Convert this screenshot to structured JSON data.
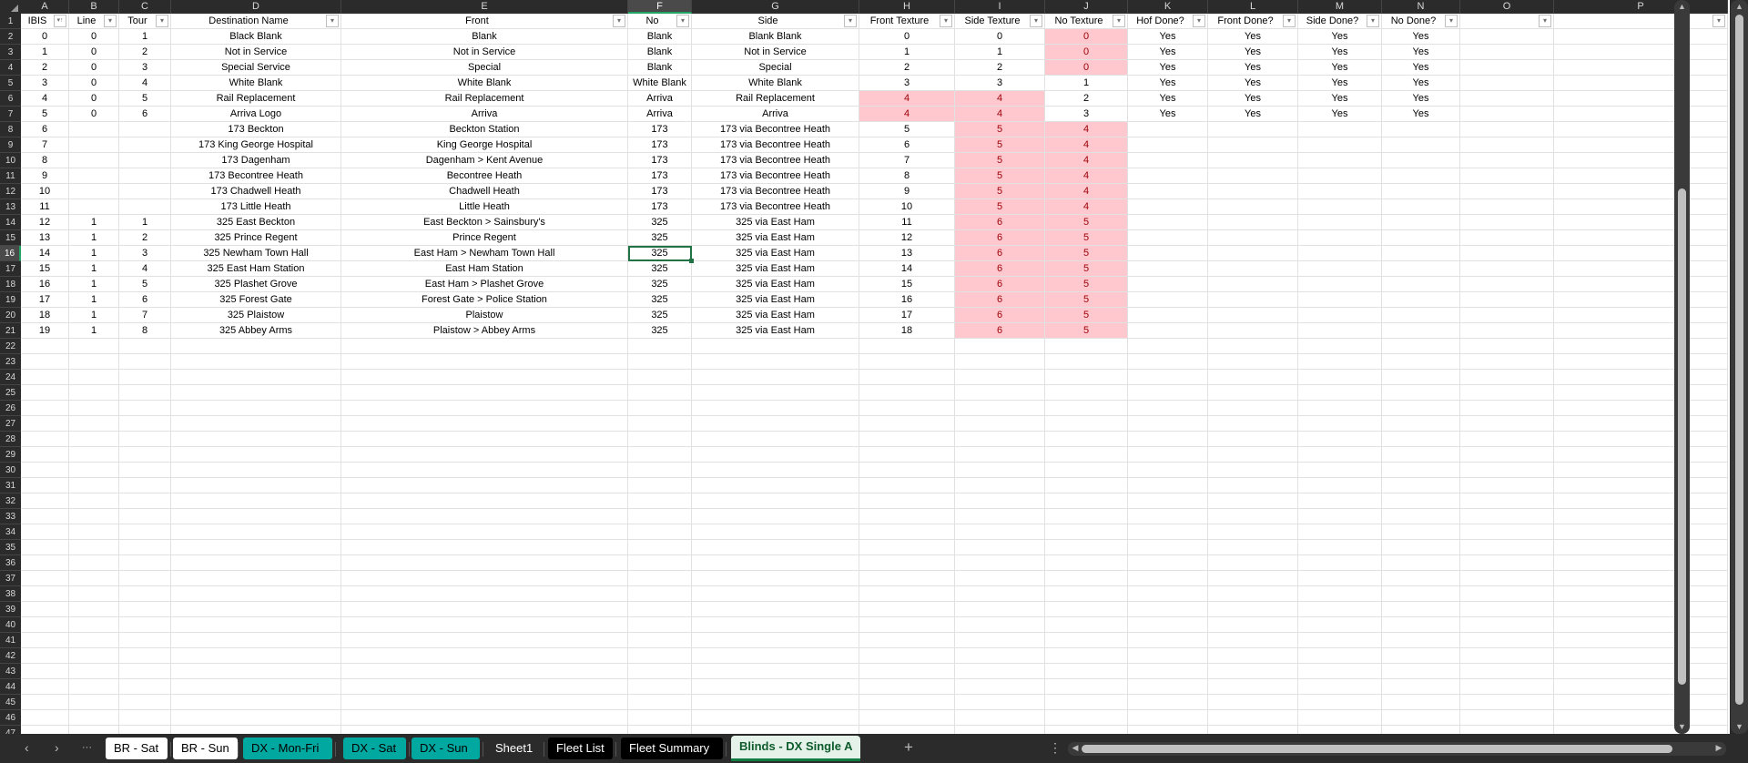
{
  "sheet": {
    "columns": [
      "A",
      "B",
      "C",
      "D",
      "E",
      "F",
      "G",
      "H",
      "I",
      "J",
      "K",
      "L",
      "M",
      "N",
      "O",
      "P"
    ],
    "selected_column": "F",
    "selected_row": 16,
    "active_cell": "F16",
    "visible_rows": 47,
    "headers": [
      "IBIS",
      "Line",
      "Tour",
      "Destination Name",
      "Front",
      "No",
      "Side",
      "Front Texture",
      "Side Texture",
      "No Texture",
      "Hof Done?",
      "Front Done?",
      "Side Done?",
      "No Done?",
      "",
      ""
    ],
    "sort_column": "A",
    "rows": [
      [
        "0",
        "0",
        "1",
        "Black Blank",
        "Blank",
        "Blank",
        "Blank Blank",
        "0",
        "0",
        "0",
        "Yes",
        "Yes",
        "Yes",
        "Yes"
      ],
      [
        "1",
        "0",
        "2",
        "Not in Service",
        "Not in Service",
        "Blank",
        "Not in Service",
        "1",
        "1",
        "0",
        "Yes",
        "Yes",
        "Yes",
        "Yes"
      ],
      [
        "2",
        "0",
        "3",
        "Special Service",
        "Special",
        "Blank",
        "Special",
        "2",
        "2",
        "0",
        "Yes",
        "Yes",
        "Yes",
        "Yes"
      ],
      [
        "3",
        "0",
        "4",
        "White Blank",
        "White Blank",
        "White Blank",
        "White Blank",
        "3",
        "3",
        "1",
        "Yes",
        "Yes",
        "Yes",
        "Yes"
      ],
      [
        "4",
        "0",
        "5",
        "Rail Replacement",
        "Rail Replacement",
        "Arriva",
        "Rail Replacement",
        "4",
        "4",
        "2",
        "Yes",
        "Yes",
        "Yes",
        "Yes"
      ],
      [
        "5",
        "0",
        "6",
        "Arriva Logo",
        "Arriva",
        "Arriva",
        "Arriva",
        "4",
        "4",
        "3",
        "Yes",
        "Yes",
        "Yes",
        "Yes"
      ],
      [
        "6",
        "",
        "",
        "173 Beckton",
        "Beckton Station",
        "173",
        "173 via Becontree Heath",
        "5",
        "5",
        "4",
        "",
        "",
        "",
        ""
      ],
      [
        "7",
        "",
        "",
        "173 King George Hospital",
        "King George Hospital",
        "173",
        "173 via Becontree Heath",
        "6",
        "5",
        "4",
        "",
        "",
        "",
        ""
      ],
      [
        "8",
        "",
        "",
        "173 Dagenham",
        "Dagenham > Kent Avenue",
        "173",
        "173 via Becontree Heath",
        "7",
        "5",
        "4",
        "",
        "",
        "",
        ""
      ],
      [
        "9",
        "",
        "",
        "173 Becontree Heath",
        "Becontree Heath",
        "173",
        "173 via Becontree Heath",
        "8",
        "5",
        "4",
        "",
        "",
        "",
        ""
      ],
      [
        "10",
        "",
        "",
        "173 Chadwell Heath",
        "Chadwell Heath",
        "173",
        "173 via Becontree Heath",
        "9",
        "5",
        "4",
        "",
        "",
        "",
        ""
      ],
      [
        "11",
        "",
        "",
        "173 Little Heath",
        "Little Heath",
        "173",
        "173 via Becontree Heath",
        "10",
        "5",
        "4",
        "",
        "",
        "",
        ""
      ],
      [
        "12",
        "1",
        "1",
        "325 East Beckton",
        "East Beckton > Sainsbury's",
        "325",
        "325 via East Ham",
        "11",
        "6",
        "5",
        "",
        "",
        "",
        ""
      ],
      [
        "13",
        "1",
        "2",
        "325 Prince Regent",
        "Prince Regent",
        "325",
        "325 via East Ham",
        "12",
        "6",
        "5",
        "",
        "",
        "",
        ""
      ],
      [
        "14",
        "1",
        "3",
        "325 Newham Town Hall",
        "East Ham > Newham Town Hall",
        "325",
        "325 via East Ham",
        "13",
        "6",
        "5",
        "",
        "",
        "",
        ""
      ],
      [
        "15",
        "1",
        "4",
        "325 East Ham Station",
        "East Ham Station",
        "325",
        "325 via East Ham",
        "14",
        "6",
        "5",
        "",
        "",
        "",
        ""
      ],
      [
        "16",
        "1",
        "5",
        "325 Plashet Grove",
        "East Ham > Plashet Grove",
        "325",
        "325 via East Ham",
        "15",
        "6",
        "5",
        "",
        "",
        "",
        ""
      ],
      [
        "17",
        "1",
        "6",
        "325 Forest Gate",
        "Forest Gate > Police Station",
        "325",
        "325 via East Ham",
        "16",
        "6",
        "5",
        "",
        "",
        "",
        ""
      ],
      [
        "18",
        "1",
        "7",
        "325 Plaistow",
        "Plaistow",
        "325",
        "325 via East Ham",
        "17",
        "6",
        "5",
        "",
        "",
        "",
        ""
      ],
      [
        "19",
        "1",
        "8",
        "325 Abbey Arms",
        "Plaistow > Abbey Arms",
        "325",
        "325 via East Ham",
        "18",
        "6",
        "5",
        "",
        "",
        "",
        ""
      ]
    ],
    "highlighted_cells": [
      "J2",
      "J3",
      "J4",
      "H6",
      "I6",
      "H7",
      "I7",
      "I8",
      "I9",
      "I10",
      "I11",
      "I12",
      "I13",
      "I14",
      "I15",
      "I16",
      "I17",
      "I18",
      "I19",
      "I20",
      "I21",
      "J8",
      "J9",
      "J10",
      "J11",
      "J12",
      "J13",
      "J14",
      "J15",
      "J16",
      "J17",
      "J18",
      "J19",
      "J20",
      "J21"
    ],
    "highlight_colors": {
      "fill": "#ffc7ce",
      "text": "#9c0006"
    }
  },
  "tabs": [
    {
      "label": "BR - Sat",
      "color": "#ffffff"
    },
    {
      "label": "BR - Sun",
      "color": "#ffffff"
    },
    {
      "label": "DX - Mon-Fri",
      "color": "#00a8a0"
    },
    {
      "label": "DX - Sat",
      "color": "#00a8a0"
    },
    {
      "label": "DX - Sun",
      "color": "#00a8a0"
    },
    {
      "label": "Sheet1",
      "color": ""
    },
    {
      "label": "Fleet List",
      "color": "#000000"
    },
    {
      "label": "Fleet Summary",
      "color": "#000000"
    },
    {
      "label": "Blinds - DX Single A",
      "color": "",
      "active": true
    }
  ],
  "tabbar": {
    "prev": "‹",
    "next": "›",
    "more": "···",
    "add": "+",
    "options": "⋮"
  }
}
